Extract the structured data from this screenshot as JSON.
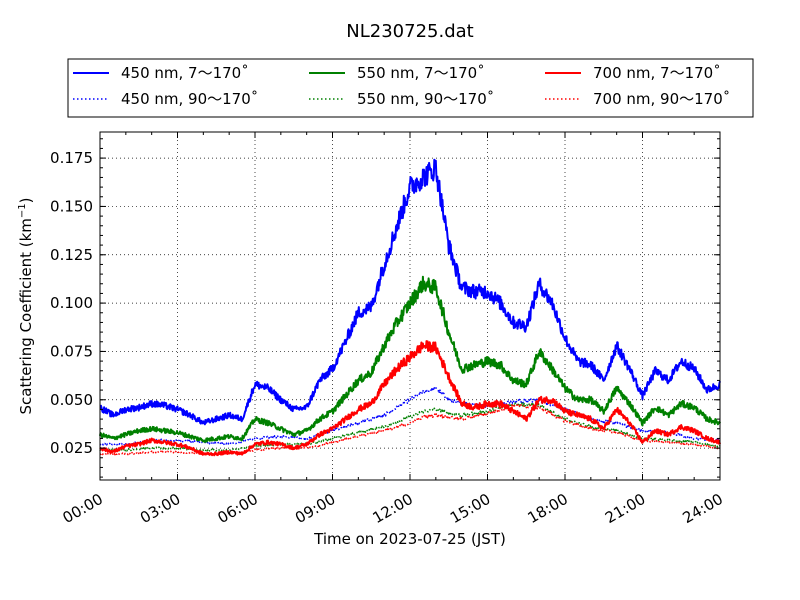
{
  "chart_data": {
    "type": "line",
    "title": "NL230725.dat",
    "xlabel": "Time on 2023-07-25 (JST)",
    "ylabel_main": "Scattering Coefficient (km",
    "ylabel_sup": "−1",
    "ylabel_close": ")",
    "xlim": [
      0,
      24
    ],
    "ylim": [
      0.0085,
      0.1885
    ],
    "x_unit": "hours",
    "xticks": [
      {
        "value": 0,
        "label": "00:00"
      },
      {
        "value": 3,
        "label": "03:00"
      },
      {
        "value": 6,
        "label": "06:00"
      },
      {
        "value": 9,
        "label": "09:00"
      },
      {
        "value": 12,
        "label": "12:00"
      },
      {
        "value": 15,
        "label": "15:00"
      },
      {
        "value": 18,
        "label": "18:00"
      },
      {
        "value": 21,
        "label": "21:00"
      },
      {
        "value": 24,
        "label": "24:00"
      }
    ],
    "yticks": [
      {
        "value": 0.025,
        "label": "0.025"
      },
      {
        "value": 0.05,
        "label": "0.050"
      },
      {
        "value": 0.075,
        "label": "0.075"
      },
      {
        "value": 0.1,
        "label": "0.100"
      },
      {
        "value": 0.125,
        "label": "0.125"
      },
      {
        "value": 0.15,
        "label": "0.150"
      },
      {
        "value": 0.175,
        "label": "0.175"
      }
    ],
    "grid": true,
    "legend_position": "top, above plot",
    "series": [
      {
        "name": "450 nm, 7～170˚",
        "color": "#0000ff",
        "style": "solid",
        "x": [
          0,
          0.5,
          1,
          1.5,
          2,
          2.5,
          3,
          3.5,
          4,
          4.5,
          5,
          5.5,
          6,
          6.5,
          7,
          7.5,
          8,
          8.5,
          9,
          9.5,
          10,
          10.5,
          11,
          11.5,
          12,
          12.5,
          13,
          13.5,
          14,
          14.5,
          15,
          15.5,
          16,
          16.5,
          17,
          17.5,
          18,
          18.5,
          19,
          19.5,
          20,
          20.5,
          21,
          21.5,
          22,
          22.5,
          23,
          23.5,
          24
        ],
        "y": [
          0.046,
          0.042,
          0.045,
          0.046,
          0.048,
          0.047,
          0.045,
          0.042,
          0.038,
          0.04,
          0.042,
          0.04,
          0.058,
          0.056,
          0.05,
          0.045,
          0.046,
          0.06,
          0.066,
          0.08,
          0.095,
          0.098,
          0.12,
          0.14,
          0.16,
          0.165,
          0.17,
          0.13,
          0.108,
          0.106,
          0.106,
          0.1,
          0.09,
          0.088,
          0.11,
          0.1,
          0.082,
          0.07,
          0.068,
          0.06,
          0.078,
          0.066,
          0.052,
          0.065,
          0.06,
          0.07,
          0.066,
          0.055,
          0.058
        ]
      },
      {
        "name": "550 nm, 7～170˚",
        "color": "#008000",
        "style": "solid",
        "x": [
          0,
          0.5,
          1,
          1.5,
          2,
          2.5,
          3,
          3.5,
          4,
          4.5,
          5,
          5.5,
          6,
          6.5,
          7,
          7.5,
          8,
          8.5,
          9,
          9.5,
          10,
          10.5,
          11,
          11.5,
          12,
          12.5,
          13,
          13.5,
          14,
          14.5,
          15,
          15.5,
          16,
          16.5,
          17,
          17.5,
          18,
          18.5,
          19,
          19.5,
          20,
          20.5,
          21,
          21.5,
          22,
          22.5,
          23,
          23.5,
          24
        ],
        "y": [
          0.032,
          0.03,
          0.032,
          0.034,
          0.035,
          0.034,
          0.033,
          0.031,
          0.029,
          0.03,
          0.031,
          0.03,
          0.04,
          0.038,
          0.035,
          0.032,
          0.034,
          0.04,
          0.044,
          0.052,
          0.06,
          0.064,
          0.078,
          0.09,
          0.1,
          0.11,
          0.108,
          0.085,
          0.066,
          0.068,
          0.07,
          0.068,
          0.06,
          0.058,
          0.075,
          0.066,
          0.056,
          0.05,
          0.05,
          0.044,
          0.056,
          0.048,
          0.038,
          0.046,
          0.042,
          0.048,
          0.046,
          0.04,
          0.038
        ]
      },
      {
        "name": "700 nm, 7～170˚",
        "color": "#ff0000",
        "style": "solid",
        "x": [
          0,
          0.5,
          1,
          1.5,
          2,
          2.5,
          3,
          3.5,
          4,
          4.5,
          5,
          5.5,
          6,
          6.5,
          7,
          7.5,
          8,
          8.5,
          9,
          9.5,
          10,
          10.5,
          11,
          11.5,
          12,
          12.5,
          13,
          13.5,
          14,
          14.5,
          15,
          15.5,
          16,
          16.5,
          17,
          17.5,
          18,
          18.5,
          19,
          19.5,
          20,
          20.5,
          21,
          21.5,
          22,
          22.5,
          23,
          23.5,
          24
        ],
        "y": [
          0.025,
          0.023,
          0.026,
          0.027,
          0.029,
          0.028,
          0.027,
          0.025,
          0.022,
          0.022,
          0.023,
          0.022,
          0.027,
          0.028,
          0.027,
          0.025,
          0.027,
          0.032,
          0.035,
          0.04,
          0.045,
          0.048,
          0.058,
          0.066,
          0.072,
          0.078,
          0.077,
          0.062,
          0.048,
          0.046,
          0.048,
          0.048,
          0.044,
          0.04,
          0.05,
          0.05,
          0.044,
          0.042,
          0.04,
          0.035,
          0.045,
          0.038,
          0.028,
          0.034,
          0.032,
          0.036,
          0.034,
          0.03,
          0.028
        ]
      },
      {
        "name": "450 nm, 90～170˚",
        "color": "#0000ff",
        "style": "dotted",
        "x": [
          0,
          1,
          2,
          3,
          4,
          5,
          6,
          7,
          8,
          9,
          10,
          11,
          12,
          12.5,
          13,
          13.5,
          14,
          15,
          16,
          17,
          18,
          19,
          20,
          21,
          22,
          23,
          24
        ],
        "y": [
          0.027,
          0.027,
          0.029,
          0.029,
          0.028,
          0.027,
          0.03,
          0.031,
          0.03,
          0.034,
          0.038,
          0.042,
          0.05,
          0.054,
          0.056,
          0.05,
          0.048,
          0.047,
          0.049,
          0.05,
          0.045,
          0.04,
          0.038,
          0.034,
          0.033,
          0.03,
          0.029
        ]
      },
      {
        "name": "550 nm, 90～170˚",
        "color": "#008000",
        "style": "dotted",
        "x": [
          0,
          1,
          2,
          3,
          4,
          5,
          6,
          7,
          8,
          9,
          10,
          11,
          12,
          12.5,
          13,
          13.5,
          14,
          15,
          16,
          17,
          18,
          19,
          20,
          21,
          22,
          23,
          24
        ],
        "y": [
          0.024,
          0.024,
          0.025,
          0.025,
          0.024,
          0.024,
          0.026,
          0.027,
          0.027,
          0.03,
          0.033,
          0.036,
          0.041,
          0.044,
          0.045,
          0.043,
          0.042,
          0.044,
          0.048,
          0.047,
          0.04,
          0.036,
          0.034,
          0.03,
          0.029,
          0.028,
          0.026
        ]
      },
      {
        "name": "700 nm, 90～170˚",
        "color": "#ff0000",
        "style": "dotted",
        "x": [
          0,
          1,
          2,
          3,
          4,
          5,
          6,
          7,
          8,
          9,
          10,
          11,
          12,
          12.5,
          13,
          13.5,
          14,
          15,
          16,
          17,
          18,
          19,
          20,
          21,
          22,
          23,
          24
        ],
        "y": [
          0.022,
          0.022,
          0.023,
          0.023,
          0.022,
          0.022,
          0.024,
          0.025,
          0.025,
          0.028,
          0.031,
          0.034,
          0.038,
          0.041,
          0.042,
          0.041,
          0.04,
          0.043,
          0.047,
          0.046,
          0.039,
          0.035,
          0.033,
          0.029,
          0.028,
          0.027,
          0.025
        ]
      }
    ]
  }
}
